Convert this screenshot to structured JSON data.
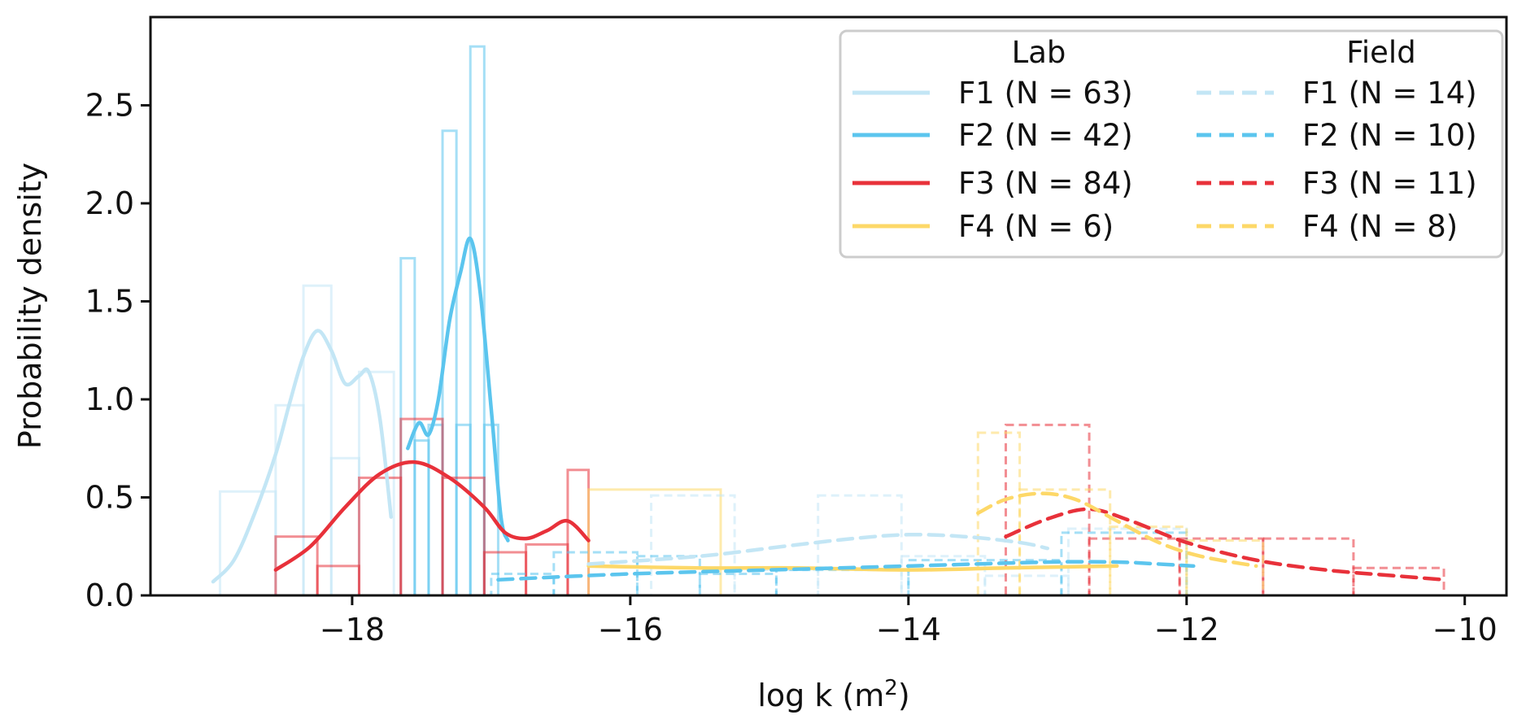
{
  "chart_data": {
    "type": "histogram_kde",
    "xlabel": "log k (m",
    "xlabel_sup": "2",
    "xlabel_close": ")",
    "ylabel": "Probability density",
    "xlim": [
      -19.45,
      -9.7
    ],
    "ylim": [
      0,
      2.95
    ],
    "xticks": [
      -18,
      -16,
      -14,
      -12,
      -10
    ],
    "yticks": [
      0.0,
      0.5,
      1.0,
      1.5,
      2.0,
      2.5
    ],
    "xtick_labels": [
      "−18",
      "−16",
      "−14",
      "−12",
      "−10"
    ],
    "ytick_labels": [
      "0.0",
      "0.5",
      "1.0",
      "1.5",
      "2.0",
      "2.5"
    ],
    "legend": {
      "placement": "top-right",
      "columns": [
        {
          "title": "Lab",
          "entries": [
            "F1 (N = 63)",
            "F2 (N = 42)",
            "F3 (N = 84)",
            "F4 (N = 6)"
          ]
        },
        {
          "title": "Field",
          "entries": [
            "F1 (N = 14)",
            "F2 (N = 10)",
            "F3 (N = 11)",
            "F4 (N = 8)"
          ]
        }
      ]
    },
    "series": [
      {
        "group": "Lab",
        "name": "F1 (N = 63)",
        "color": "#c3e6f5",
        "style": "solid",
        "hist": {
          "edges": [
            -18.95,
            -18.55,
            -18.35,
            -18.15,
            -17.95,
            -17.7
          ],
          "values": [
            0.53,
            0.97,
            1.58,
            0.7,
            1.14
          ]
        },
        "kde": [
          [
            -19.0,
            0.07
          ],
          [
            -18.85,
            0.18
          ],
          [
            -18.7,
            0.42
          ],
          [
            -18.55,
            0.72
          ],
          [
            -18.45,
            0.98
          ],
          [
            -18.35,
            1.22
          ],
          [
            -18.25,
            1.35
          ],
          [
            -18.15,
            1.25
          ],
          [
            -18.05,
            1.08
          ],
          [
            -17.95,
            1.12
          ],
          [
            -17.88,
            1.14
          ],
          [
            -17.8,
            0.9
          ],
          [
            -17.72,
            0.4
          ]
        ]
      },
      {
        "group": "Lab",
        "name": "F2 (N = 42)",
        "color": "#5bc5ee",
        "style": "solid",
        "hist": {
          "edges": [
            -17.65,
            -17.55,
            -17.45,
            -17.35,
            -17.25,
            -17.15,
            -17.05,
            -16.95
          ],
          "values": [
            1.72,
            0.79,
            0.87,
            2.37,
            0.87,
            2.8,
            0.87
          ]
        },
        "kde": [
          [
            -17.6,
            0.75
          ],
          [
            -17.52,
            0.88
          ],
          [
            -17.45,
            0.82
          ],
          [
            -17.38,
            1.0
          ],
          [
            -17.3,
            1.4
          ],
          [
            -17.22,
            1.65
          ],
          [
            -17.15,
            1.82
          ],
          [
            -17.08,
            1.55
          ],
          [
            -17.0,
            0.95
          ],
          [
            -16.93,
            0.4
          ],
          [
            -16.88,
            0.28
          ]
        ]
      },
      {
        "group": "Lab",
        "name": "F3 (N = 84)",
        "color": "#e8313a",
        "style": "solid",
        "hist": {
          "edges": [
            -18.55,
            -18.25,
            -17.95,
            -17.65,
            -17.35,
            -17.05,
            -16.75,
            -16.45,
            -16.3
          ],
          "values": [
            0.3,
            0.15,
            0.6,
            0.9,
            0.6,
            0.22,
            0.26,
            0.64
          ]
        },
        "kde": [
          [
            -18.55,
            0.13
          ],
          [
            -18.3,
            0.25
          ],
          [
            -18.05,
            0.45
          ],
          [
            -17.8,
            0.62
          ],
          [
            -17.55,
            0.68
          ],
          [
            -17.3,
            0.6
          ],
          [
            -17.05,
            0.45
          ],
          [
            -16.9,
            0.32
          ],
          [
            -16.75,
            0.29
          ],
          [
            -16.6,
            0.33
          ],
          [
            -16.45,
            0.38
          ],
          [
            -16.3,
            0.28
          ]
        ]
      },
      {
        "group": "Lab",
        "name": "F4 (N = 6)",
        "color": "#fdd868",
        "style": "solid",
        "hist": {
          "edges": [
            -16.3,
            -15.35
          ],
          "values": [
            0.54
          ]
        },
        "kde": [
          [
            -16.3,
            0.15
          ],
          [
            -15.5,
            0.14
          ],
          [
            -14.8,
            0.14
          ],
          [
            -14.0,
            0.13
          ],
          [
            -13.3,
            0.14
          ],
          [
            -12.5,
            0.15
          ]
        ]
      },
      {
        "group": "Field",
        "name": "F1 (N = 14)",
        "color": "#c3e6f5",
        "style": "dashed",
        "hist": {
          "edges": [
            -15.85,
            -15.25,
            -14.65,
            -14.05,
            -13.45,
            -12.85,
            -12.0
          ],
          "values": [
            0.51,
            0.13,
            0.51,
            0.2,
            0.1,
            0.34
          ]
        },
        "kde": [
          [
            -16.3,
            0.16
          ],
          [
            -15.5,
            0.2
          ],
          [
            -14.9,
            0.25
          ],
          [
            -14.4,
            0.29
          ],
          [
            -14.0,
            0.31
          ],
          [
            -13.6,
            0.3
          ],
          [
            -13.2,
            0.27
          ],
          [
            -13.0,
            0.24
          ]
        ]
      },
      {
        "group": "Field",
        "name": "F2 (N = 10)",
        "color": "#5bc5ee",
        "style": "dashed",
        "hist": {
          "edges": [
            -17.0,
            -16.55,
            -15.95,
            -15.5,
            -14.95,
            -14.0,
            -12.9,
            -12.0
          ],
          "values": [
            0.11,
            0.22,
            0.2,
            0.11,
            0.13,
            0.18,
            0.32
          ]
        },
        "kde": [
          [
            -16.95,
            0.08
          ],
          [
            -16.0,
            0.11
          ],
          [
            -15.0,
            0.13
          ],
          [
            -14.0,
            0.15
          ],
          [
            -13.0,
            0.17
          ],
          [
            -12.5,
            0.17
          ],
          [
            -12.2,
            0.16
          ],
          [
            -11.95,
            0.15
          ]
        ]
      },
      {
        "group": "Field",
        "name": "F3 (N = 11)",
        "color": "#e8313a",
        "style": "dashed",
        "hist": {
          "edges": [
            -13.3,
            -12.7,
            -12.05,
            -11.45,
            -10.8,
            -10.15
          ],
          "values": [
            0.87,
            0.29,
            0.29,
            0.29,
            0.14
          ]
        },
        "kde": [
          [
            -13.3,
            0.3
          ],
          [
            -13.0,
            0.39
          ],
          [
            -12.7,
            0.44
          ],
          [
            -12.4,
            0.38
          ],
          [
            -12.0,
            0.27
          ],
          [
            -11.5,
            0.18
          ],
          [
            -11.0,
            0.13
          ],
          [
            -10.5,
            0.1
          ],
          [
            -10.15,
            0.08
          ]
        ]
      },
      {
        "group": "Field",
        "name": "F4 (N = 8)",
        "color": "#fdd868",
        "style": "dashed",
        "hist": {
          "edges": [
            -13.5,
            -13.2,
            -12.55,
            -12.0,
            -11.45
          ],
          "values": [
            0.83,
            0.54,
            0.35,
            0.28
          ]
        },
        "kde": [
          [
            -13.5,
            0.42
          ],
          [
            -13.3,
            0.49
          ],
          [
            -13.05,
            0.52
          ],
          [
            -12.8,
            0.49
          ],
          [
            -12.5,
            0.38
          ],
          [
            -12.2,
            0.27
          ],
          [
            -11.9,
            0.2
          ],
          [
            -11.5,
            0.15
          ]
        ]
      }
    ]
  }
}
